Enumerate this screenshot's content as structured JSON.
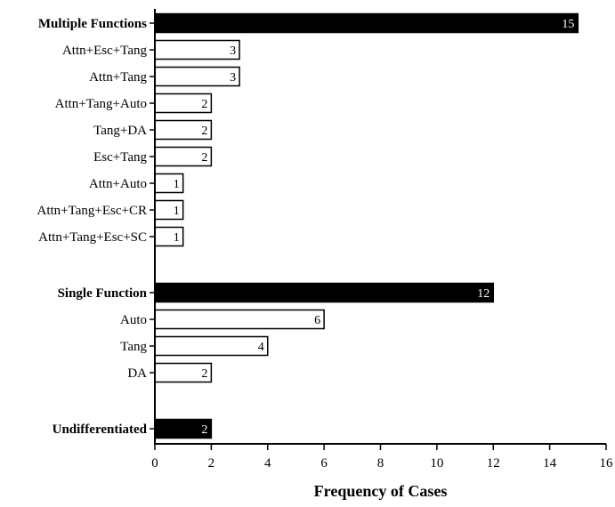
{
  "chart_data": {
    "type": "bar",
    "orientation": "horizontal",
    "xlabel": "Frequency of  Cases",
    "xlim": [
      0,
      16
    ],
    "xticks": [
      0,
      2,
      4,
      6,
      8,
      10,
      12,
      14,
      16
    ],
    "grid": false,
    "bars": [
      {
        "label": "Multiple Functions",
        "value": 15,
        "group_total": true,
        "fill": "#000000"
      },
      {
        "label": "Attn+Esc+Tang",
        "value": 3,
        "group_total": false,
        "fill": "#ffffff"
      },
      {
        "label": "Attn+Tang",
        "value": 3,
        "group_total": false,
        "fill": "#ffffff"
      },
      {
        "label": "Attn+Tang+Auto",
        "value": 2,
        "group_total": false,
        "fill": "#ffffff"
      },
      {
        "label": "Tang+DA",
        "value": 2,
        "group_total": false,
        "fill": "#ffffff"
      },
      {
        "label": "Esc+Tang",
        "value": 2,
        "group_total": false,
        "fill": "#ffffff"
      },
      {
        "label": "Attn+Auto",
        "value": 1,
        "group_total": false,
        "fill": "#ffffff"
      },
      {
        "label": "Attn+Tang+Esc+CR",
        "value": 1,
        "group_total": false,
        "fill": "#ffffff"
      },
      {
        "label": "Attn+Tang+Esc+SC",
        "value": 1,
        "group_total": false,
        "fill": "#ffffff"
      },
      {
        "label": "Single Function",
        "value": 12,
        "group_total": true,
        "fill": "#000000"
      },
      {
        "label": "Auto",
        "value": 6,
        "group_total": false,
        "fill": "#ffffff"
      },
      {
        "label": "Tang",
        "value": 4,
        "group_total": false,
        "fill": "#ffffff"
      },
      {
        "label": "DA",
        "value": 2,
        "group_total": false,
        "fill": "#ffffff"
      },
      {
        "label": "Undifferentiated",
        "value": 2,
        "group_total": true,
        "fill": "#000000"
      }
    ]
  }
}
